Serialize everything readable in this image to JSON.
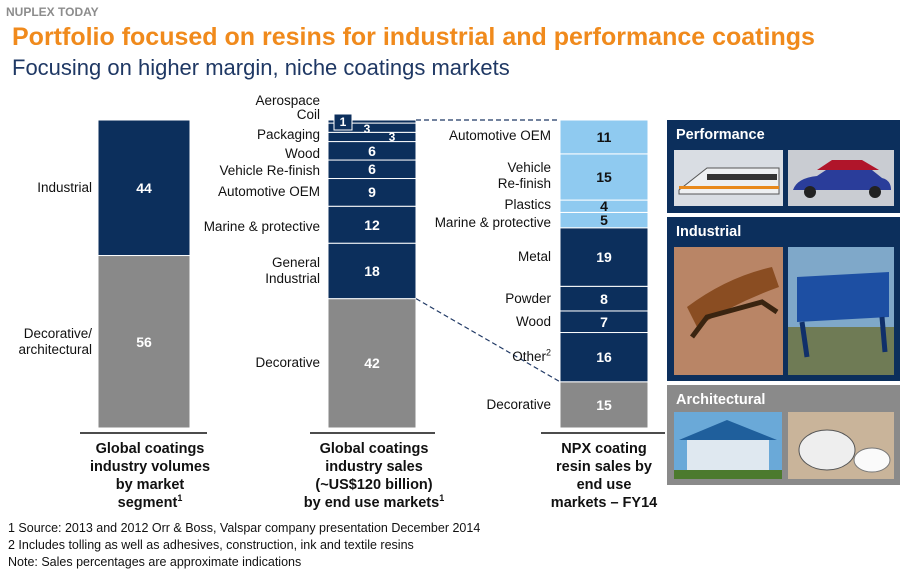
{
  "header": {
    "brand": "NUPLEX TODAY",
    "title": "Portfolio focused on resins for industrial and performance coatings",
    "subtitle": "Focusing on higher margin, niche coatings markets"
  },
  "chart_data": [
    {
      "type": "stacked_bar",
      "caption": "Global coatings\nindustry volumes\nby market\nsegment",
      "caption_note": "1",
      "series": [
        {
          "name": "Decorative/\narchitectural",
          "value": 56,
          "color": "#898989"
        },
        {
          "name": "Industrial",
          "value": 44,
          "color": "#0c2f5c"
        }
      ]
    },
    {
      "type": "stacked_bar",
      "caption": "Global coatings\nindustry sales\n(~US$120 billion)\nby end use markets",
      "caption_note": "1",
      "series": [
        {
          "name": "Decorative",
          "value": 42,
          "color": "#898989"
        },
        {
          "name": "General\nIndustrial",
          "value": 18,
          "color": "#0c2f5c"
        },
        {
          "name": "Marine & protective",
          "value": 12,
          "color": "#0c2f5c"
        },
        {
          "name": "Automotive OEM",
          "value": 9,
          "color": "#0c2f5c"
        },
        {
          "name": "Vehicle Re-finish",
          "value": 6,
          "color": "#0c2f5c"
        },
        {
          "name": "Wood",
          "value": 6,
          "color": "#0c2f5c"
        },
        {
          "name": "Packaging",
          "value": 3,
          "color": "#0c2f5c"
        },
        {
          "name": "Coil",
          "value": 3,
          "color": "#0c2f5c"
        },
        {
          "name": "Aerospace",
          "value": 1,
          "color": "#0c2f5c"
        }
      ]
    },
    {
      "type": "stacked_bar",
      "caption": "NPX coating\nresin sales by\nend use\nmarkets – FY14",
      "series": [
        {
          "name": "Decorative",
          "value": 15,
          "color": "#898989"
        },
        {
          "name": "Other",
          "note": "2",
          "value": 16,
          "color": "#0c2f5c"
        },
        {
          "name": "Wood",
          "value": 7,
          "color": "#0c2f5c"
        },
        {
          "name": "Powder",
          "value": 8,
          "color": "#0c2f5c"
        },
        {
          "name": "Metal",
          "value": 19,
          "color": "#0c2f5c"
        },
        {
          "name": "Marine & protective",
          "value": 5,
          "color": "#8fcaf0"
        },
        {
          "name": "Plastics",
          "value": 4,
          "color": "#8fcaf0"
        },
        {
          "name": "Vehicle\nRe-finish",
          "value": 15,
          "color": "#8fcaf0"
        },
        {
          "name": "Automotive OEM",
          "value": 11,
          "color": "#8fcaf0"
        }
      ]
    }
  ],
  "panels": [
    "Performance",
    "Industrial",
    "Architectural"
  ],
  "footnotes": [
    "1  Source: 2013 and 2012 Orr & Boss, Valspar company presentation December 2014",
    "2  Includes tolling as well as adhesives, construction, ink and textile resins",
    "Note: Sales percentages are approximate indications"
  ]
}
